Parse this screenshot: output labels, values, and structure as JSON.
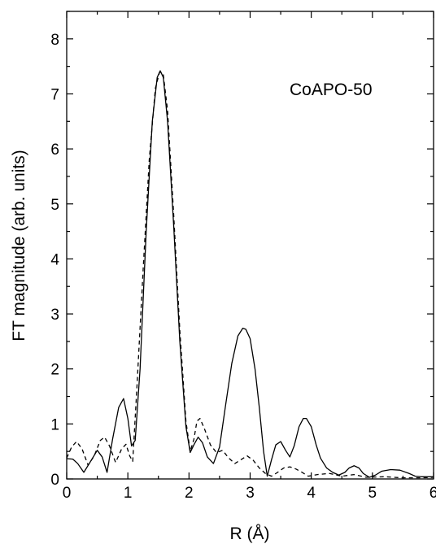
{
  "chart_data": {
    "type": "line",
    "title": "",
    "xlabel": "R (Å)",
    "ylabel": "FT magnitude (arb. units)",
    "annotation": "CoAPO-50",
    "xlim": [
      0,
      6
    ],
    "ylim": [
      0,
      8.5
    ],
    "x_ticks": [
      "0",
      "1",
      "2",
      "3",
      "4",
      "5",
      "6"
    ],
    "y_ticks": [
      "0",
      "1",
      "2",
      "3",
      "4",
      "5",
      "6",
      "7",
      "8"
    ],
    "grid": false,
    "legend": "none",
    "series": [
      {
        "style": "solid",
        "color": "#000000",
        "x": [
          0,
          0.1,
          0.18,
          0.28,
          0.38,
          0.5,
          0.58,
          0.66,
          0.75,
          0.85,
          0.93,
          1.0,
          1.06,
          1.12,
          1.2,
          1.3,
          1.4,
          1.48,
          1.53,
          1.58,
          1.65,
          1.75,
          1.85,
          1.95,
          2.02,
          2.08,
          2.15,
          2.22,
          2.3,
          2.4,
          2.5,
          2.6,
          2.7,
          2.8,
          2.88,
          2.93,
          3.0,
          3.08,
          3.15,
          3.22,
          3.28,
          3.35,
          3.42,
          3.5,
          3.58,
          3.65,
          3.72,
          3.8,
          3.87,
          3.92,
          4.0,
          4.08,
          4.15,
          4.25,
          4.35,
          4.45,
          4.55,
          4.62,
          4.7,
          4.78,
          4.85,
          4.95,
          5.05,
          5.15,
          5.3,
          5.45,
          5.6,
          5.7,
          5.8,
          5.9,
          6.0
        ],
        "y": [
          0.37,
          0.36,
          0.28,
          0.12,
          0.3,
          0.52,
          0.4,
          0.12,
          0.72,
          1.3,
          1.46,
          1.1,
          0.6,
          0.7,
          2.0,
          4.5,
          6.5,
          7.3,
          7.42,
          7.3,
          6.5,
          4.6,
          2.5,
          0.95,
          0.48,
          0.62,
          0.76,
          0.66,
          0.4,
          0.28,
          0.58,
          1.35,
          2.1,
          2.6,
          2.74,
          2.72,
          2.55,
          2.0,
          1.3,
          0.5,
          0.05,
          0.35,
          0.62,
          0.68,
          0.52,
          0.4,
          0.6,
          0.95,
          1.1,
          1.1,
          0.95,
          0.62,
          0.38,
          0.2,
          0.12,
          0.07,
          0.12,
          0.2,
          0.24,
          0.2,
          0.1,
          0.03,
          0.07,
          0.14,
          0.17,
          0.16,
          0.1,
          0.05,
          0.04,
          0.04,
          0.04
        ]
      },
      {
        "style": "dashed",
        "color": "#000000",
        "x": [
          0,
          0.08,
          0.16,
          0.25,
          0.35,
          0.45,
          0.55,
          0.62,
          0.7,
          0.8,
          0.9,
          0.97,
          1.03,
          1.08,
          1.15,
          1.25,
          1.35,
          1.45,
          1.52,
          1.58,
          1.65,
          1.75,
          1.85,
          1.95,
          2.02,
          2.08,
          2.13,
          2.18,
          2.25,
          2.35,
          2.45,
          2.55,
          2.65,
          2.75,
          2.85,
          2.95,
          3.05,
          3.15,
          3.25,
          3.35,
          3.45,
          3.55,
          3.65,
          3.75,
          3.85,
          3.95,
          4.1,
          4.3,
          4.5,
          4.7,
          4.9,
          5.2,
          5.5,
          5.8,
          6.0
        ],
        "y": [
          0.38,
          0.58,
          0.68,
          0.55,
          0.25,
          0.42,
          0.7,
          0.76,
          0.6,
          0.3,
          0.55,
          0.63,
          0.42,
          0.32,
          1.7,
          3.8,
          5.8,
          7.1,
          7.4,
          7.35,
          6.7,
          4.8,
          2.7,
          1.05,
          0.5,
          0.72,
          1.05,
          1.1,
          0.92,
          0.62,
          0.48,
          0.52,
          0.38,
          0.28,
          0.35,
          0.42,
          0.34,
          0.2,
          0.1,
          0.05,
          0.12,
          0.2,
          0.22,
          0.18,
          0.12,
          0.05,
          0.08,
          0.1,
          0.05,
          0.08,
          0.03,
          0.04,
          0.02,
          0.02,
          0.03
        ]
      }
    ]
  }
}
